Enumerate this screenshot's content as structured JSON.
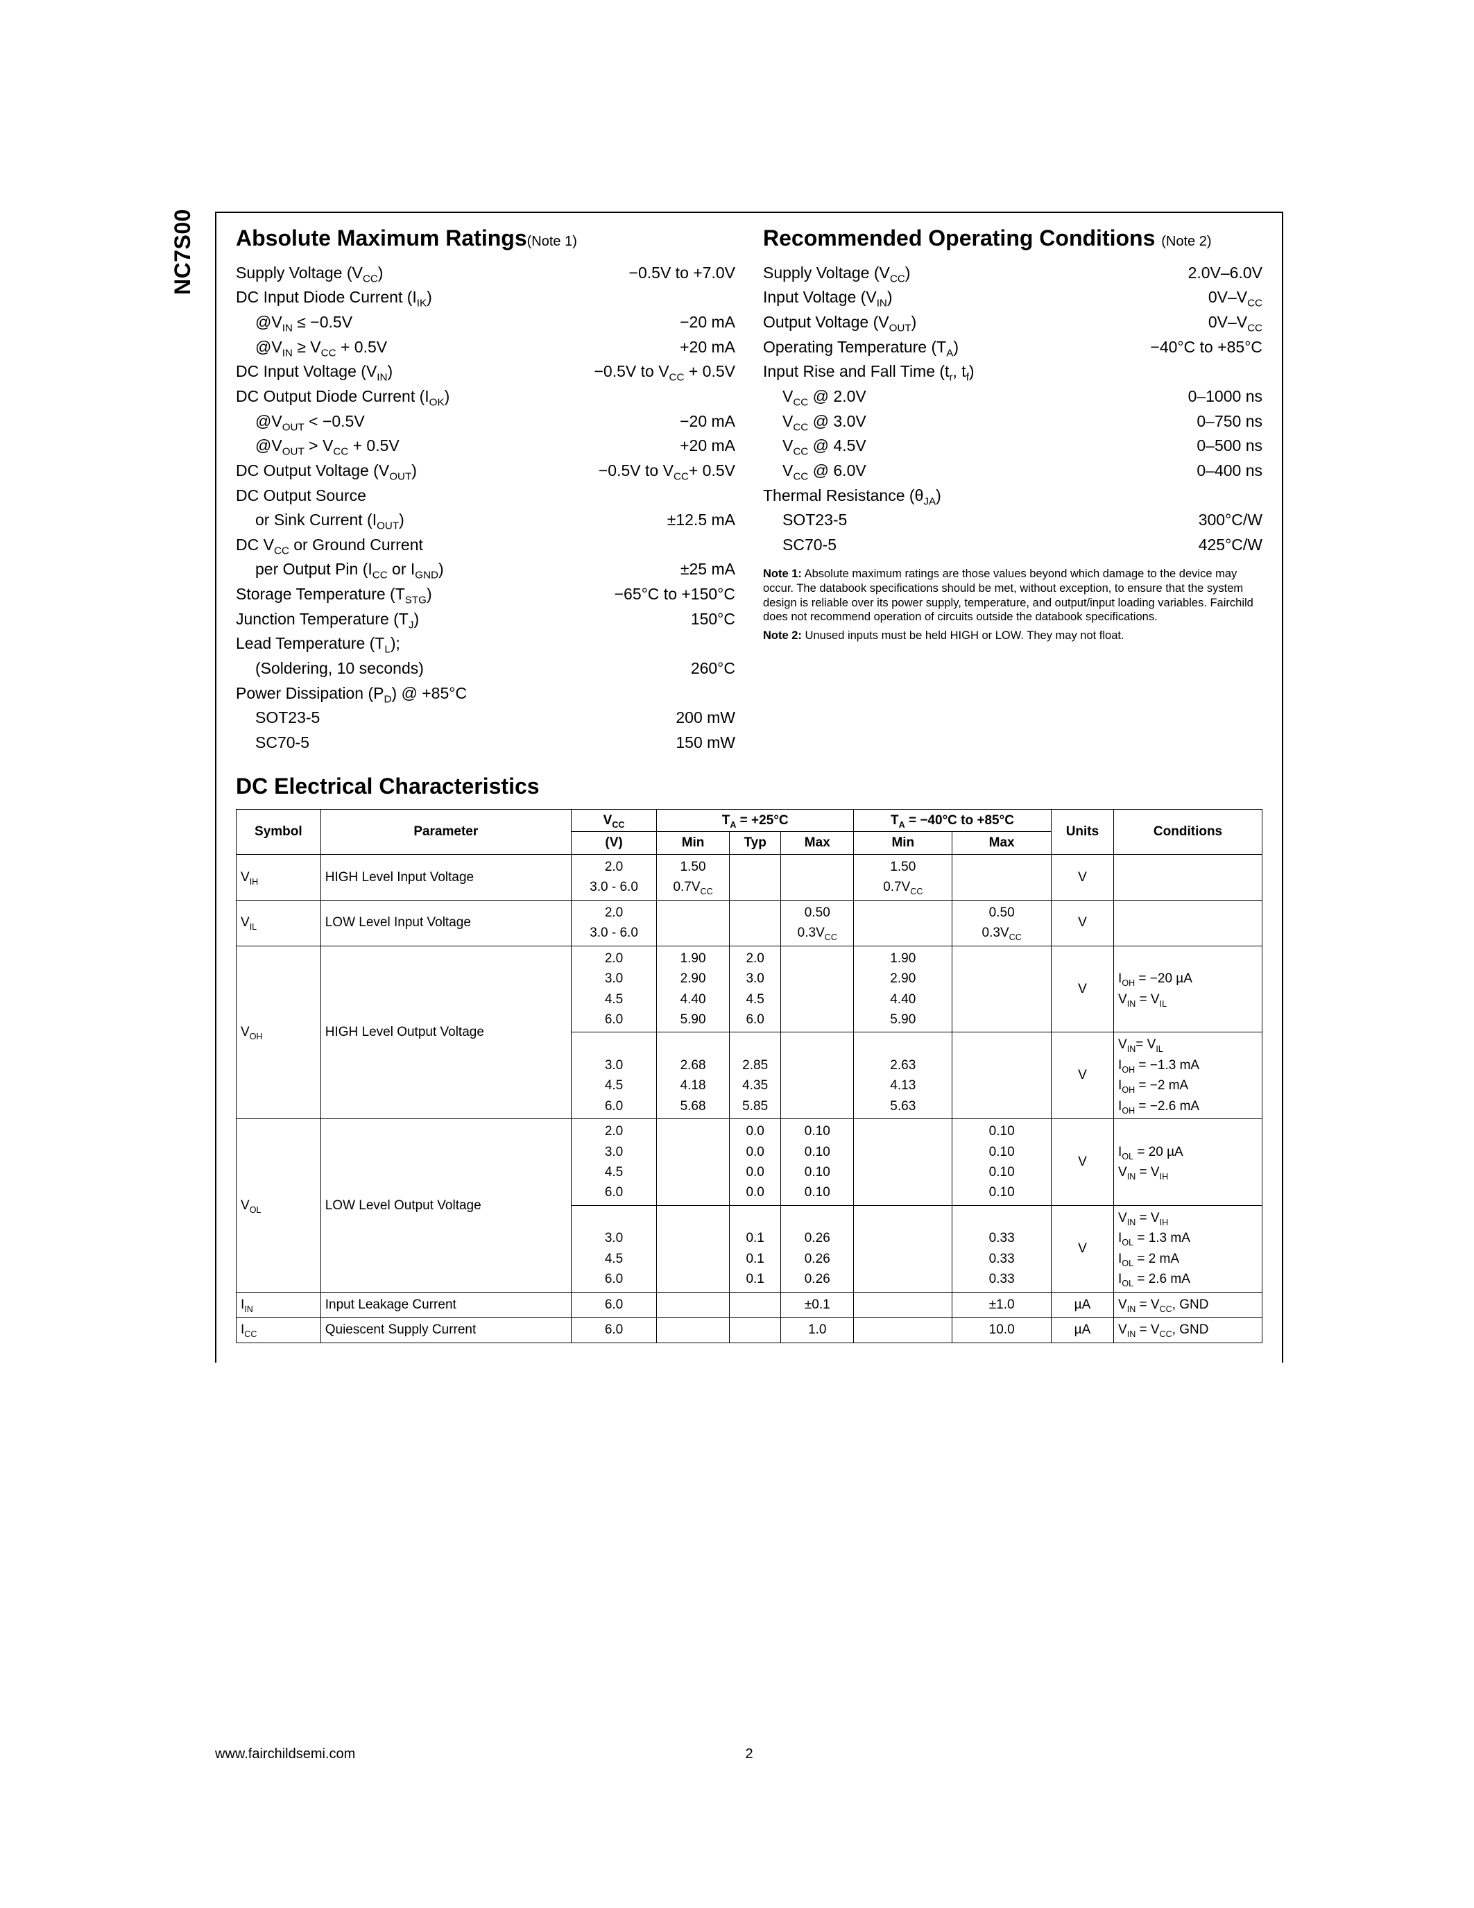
{
  "part_number": "NC7S00",
  "footer": {
    "url": "www.fairchildsemi.com",
    "page": "2"
  },
  "amr": {
    "title": "Absolute Maximum Ratings",
    "note_ref": "(Note 1)",
    "rows": [
      {
        "label": "Supply Voltage (V<sub>CC</sub>)",
        "value": "−0.5V to +7.0V"
      },
      {
        "label": "DC Input Diode Current (I<sub>IK</sub>)",
        "value": ""
      },
      {
        "label": "@V<sub>IN</sub> ≤ −0.5V",
        "value": "−20 mA",
        "indent": true
      },
      {
        "label": "@V<sub>IN</sub> ≥ V<sub>CC</sub> + 0.5V",
        "value": "+20 mA",
        "indent": true
      },
      {
        "label": "DC Input Voltage (V<sub>IN</sub>)",
        "value": "−0.5V to V<sub>CC</sub> + 0.5V"
      },
      {
        "label": "DC Output Diode Current (I<sub>OK</sub>)",
        "value": ""
      },
      {
        "label": "@V<sub>OUT</sub> < −0.5V",
        "value": "−20 mA",
        "indent": true
      },
      {
        "label": "@V<sub>OUT</sub> > V<sub>CC</sub> + 0.5V",
        "value": "+20 mA",
        "indent": true
      },
      {
        "label": "DC Output Voltage (V<sub>OUT</sub>)",
        "value": "−0.5V to V<sub>CC</sub>+ 0.5V"
      },
      {
        "label": "DC Output Source",
        "value": ""
      },
      {
        "label": "or Sink Current (I<sub>OUT</sub>)",
        "value": "±12.5 mA",
        "indent": true
      },
      {
        "label": "DC V<sub>CC</sub> or Ground Current",
        "value": ""
      },
      {
        "label": "per Output Pin (I<sub>CC</sub> or I<sub>GND</sub>)",
        "value": "±25 mA",
        "indent": true
      },
      {
        "label": "Storage Temperature (T<sub>STG</sub>)",
        "value": "−65°C to +150°C"
      },
      {
        "label": "Junction Temperature (T<sub>J</sub>)",
        "value": "150°C"
      },
      {
        "label": "Lead Temperature (T<sub>L</sub>);",
        "value": ""
      },
      {
        "label": "(Soldering, 10 seconds)",
        "value": "260°C",
        "indent": true
      },
      {
        "label": "Power Dissipation (P<sub>D</sub>) @ +85°C",
        "value": ""
      },
      {
        "label": "SOT23-5",
        "value": "200 mW",
        "indent": true
      },
      {
        "label": "SC70-5",
        "value": "150 mW",
        "indent": true
      }
    ]
  },
  "roc": {
    "title": "Recommended Operating Conditions",
    "note_ref": "(Note 2)",
    "rows": [
      {
        "label": "Supply Voltage (V<sub>CC</sub>)",
        "value": "2.0V–6.0V"
      },
      {
        "label": "Input Voltage (V<sub>IN</sub>)",
        "value": "0V–V<sub>CC</sub>"
      },
      {
        "label": "Output Voltage (V<sub>OUT</sub>)",
        "value": "0V–V<sub>CC</sub>"
      },
      {
        "label": "Operating Temperature (T<sub>A</sub>)",
        "value": "−40°C to +85°C"
      },
      {
        "label": "Input Rise and Fall Time (t<sub>r</sub>, t<sub>f</sub>)",
        "value": ""
      },
      {
        "label": "V<sub>CC</sub> @ 2.0V",
        "value": "0–1000 ns",
        "indent": true
      },
      {
        "label": "V<sub>CC</sub> @ 3.0V",
        "value": "0–750 ns",
        "indent": true
      },
      {
        "label": "V<sub>CC</sub> @ 4.5V",
        "value": "0–500 ns",
        "indent": true
      },
      {
        "label": "V<sub>CC</sub> @ 6.0V",
        "value": "0–400 ns",
        "indent": true
      },
      {
        "label": "Thermal Resistance (θ<sub>JA</sub>)",
        "value": ""
      },
      {
        "label": "SOT23-5",
        "value": "300°C/W",
        "indent": true
      },
      {
        "label": "SC70-5",
        "value": "425°C/W",
        "indent": true
      }
    ],
    "notes": [
      "<b>Note 1:</b> Absolute maximum ratings are those values beyond which damage to the device may occur. The databook specifications should be met, without exception, to ensure that the system design is reliable over its power supply, temperature, and output/input loading variables. Fairchild does not recommend operation of circuits outside the databook specifications.",
      "<b>Note 2:</b> Unused inputs must be held HIGH or LOW. They may not float."
    ]
  },
  "dc": {
    "title": "DC Electrical Characteristics",
    "head": {
      "symbol": "Symbol",
      "parameter": "Parameter",
      "vcc": "V<sub>CC</sub>",
      "vcc_unit": "(V)",
      "ta25": "T<sub>A</sub> = +25°C",
      "ta_range": "T<sub>A</sub> = −40°C to +85°C",
      "min": "Min",
      "typ": "Typ",
      "max": "Max",
      "units": "Units",
      "conditions": "Conditions"
    },
    "rows": [
      {
        "sym": "V<sub>IH</sub>",
        "param": "HIGH Level Input Voltage",
        "vcc": [
          "2.0",
          "3.0 - 6.0"
        ],
        "min": [
          "1.50",
          "0.7V<sub>CC</sub>"
        ],
        "typ": [
          "",
          ""
        ],
        "max": [
          "",
          ""
        ],
        "min2": [
          "1.50",
          "0.7V<sub>CC</sub>"
        ],
        "max2": [
          "",
          ""
        ],
        "units": "V",
        "cond": ""
      },
      {
        "sym": "V<sub>IL</sub>",
        "param": "LOW Level Input Voltage",
        "vcc": [
          "2.0",
          "3.0 - 6.0"
        ],
        "min": [
          "",
          ""
        ],
        "typ": [
          "",
          ""
        ],
        "max": [
          "0.50",
          "0.3V<sub>CC</sub>"
        ],
        "min2": [
          "",
          ""
        ],
        "max2": [
          "0.50",
          "0.3V<sub>CC</sub>"
        ],
        "units": "V",
        "cond": ""
      },
      {
        "sym": "V<sub>OH</sub>",
        "param": "HIGH Level Output Voltage",
        "vcc": [
          "2.0",
          "3.0",
          "4.5",
          "6.0"
        ],
        "min": [
          "1.90",
          "2.90",
          "4.40",
          "5.90"
        ],
        "typ": [
          "2.0",
          "3.0",
          "4.5",
          "6.0"
        ],
        "max": [
          "",
          "",
          "",
          ""
        ],
        "min2": [
          "1.90",
          "2.90",
          "4.40",
          "5.90"
        ],
        "max2": [
          "",
          "",
          "",
          ""
        ],
        "units": "V",
        "cond": "I<sub>OH</sub> = −20 µA<br>V<sub>IN</sub> = V<sub>IL</sub>"
      },
      {
        "sym": "",
        "param": "",
        "vcc": [
          "",
          "3.0",
          "4.5",
          "6.0"
        ],
        "min": [
          "",
          "2.68",
          "4.18",
          "5.68"
        ],
        "typ": [
          "",
          "2.85",
          "4.35",
          "5.85"
        ],
        "max": [
          "",
          "",
          "",
          ""
        ],
        "min2": [
          "",
          "2.63",
          "4.13",
          "5.63"
        ],
        "max2": [
          "",
          "",
          "",
          ""
        ],
        "units": "V",
        "cond": "V<sub>IN</sub>= V<sub>IL</sub><br>I<sub>OH</sub> = −1.3 mA<br>I<sub>OH</sub> = −2 mA<br>I<sub>OH</sub> = −2.6 mA",
        "continue_sym": true
      },
      {
        "sym": "V<sub>OL</sub>",
        "param": "LOW Level Output Voltage",
        "vcc": [
          "2.0",
          "3.0",
          "4.5",
          "6.0"
        ],
        "min": [
          "",
          "",
          "",
          ""
        ],
        "typ": [
          "0.0",
          "0.0",
          "0.0",
          "0.0"
        ],
        "max": [
          "0.10",
          "0.10",
          "0.10",
          "0.10"
        ],
        "min2": [
          "",
          "",
          "",
          ""
        ],
        "max2": [
          "0.10",
          "0.10",
          "0.10",
          "0.10"
        ],
        "units": "V",
        "cond": "I<sub>OL</sub> = 20 µA<br>V<sub>IN</sub> = V<sub>IH</sub>"
      },
      {
        "sym": "",
        "param": "",
        "vcc": [
          "",
          "3.0",
          "4.5",
          "6.0"
        ],
        "min": [
          "",
          "",
          "",
          ""
        ],
        "typ": [
          "",
          "0.1",
          "0.1",
          "0.1"
        ],
        "max": [
          "",
          "0.26",
          "0.26",
          "0.26"
        ],
        "min2": [
          "",
          "",
          "",
          ""
        ],
        "max2": [
          "",
          "0.33",
          "0.33",
          "0.33"
        ],
        "units": "V",
        "cond": "V<sub>IN</sub> = V<sub>IH</sub><br>I<sub>OL</sub> = 1.3 mA<br>I<sub>OL</sub> = 2 mA<br>I<sub>OL</sub> = 2.6 mA",
        "continue_sym": true
      },
      {
        "sym": "I<sub>IN</sub>",
        "param": "Input Leakage Current",
        "vcc": [
          "6.0"
        ],
        "min": [
          ""
        ],
        "typ": [
          ""
        ],
        "max": [
          "±0.1"
        ],
        "min2": [
          ""
        ],
        "max2": [
          "±1.0"
        ],
        "units": "µA",
        "cond": "V<sub>IN</sub> = V<sub>CC</sub>, GND"
      },
      {
        "sym": "I<sub>CC</sub>",
        "param": "Quiescent Supply Current",
        "vcc": [
          "6.0"
        ],
        "min": [
          ""
        ],
        "typ": [
          ""
        ],
        "max": [
          "1.0"
        ],
        "min2": [
          ""
        ],
        "max2": [
          "10.0"
        ],
        "units": "µA",
        "cond": "V<sub>IN</sub> = V<sub>CC</sub>, GND"
      }
    ]
  }
}
